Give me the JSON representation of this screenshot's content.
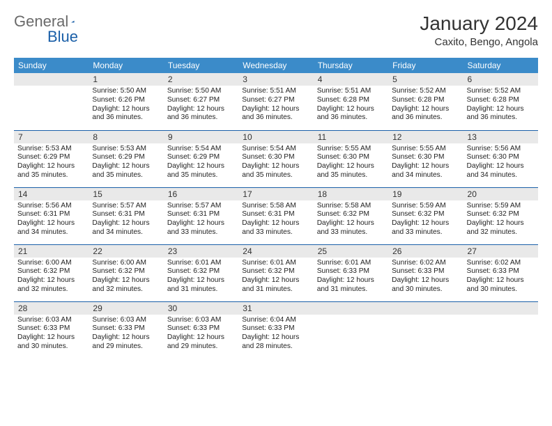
{
  "logo": {
    "general": "General",
    "blue": "Blue"
  },
  "title": "January 2024",
  "location": "Caxito, Bengo, Angola",
  "colors": {
    "header_bg": "#3b8bc9",
    "header_text": "#ffffff",
    "daynum_bg": "#e9e9e9",
    "row_border": "#1a5fa8",
    "logo_gray": "#6a6a6a",
    "logo_blue": "#1a5fa8"
  },
  "daynames": [
    "Sunday",
    "Monday",
    "Tuesday",
    "Wednesday",
    "Thursday",
    "Friday",
    "Saturday"
  ],
  "weeks": [
    [
      null,
      {
        "n": "1",
        "sr": "5:50 AM",
        "ss": "6:26 PM",
        "dl": "12 hours and 36 minutes."
      },
      {
        "n": "2",
        "sr": "5:50 AM",
        "ss": "6:27 PM",
        "dl": "12 hours and 36 minutes."
      },
      {
        "n": "3",
        "sr": "5:51 AM",
        "ss": "6:27 PM",
        "dl": "12 hours and 36 minutes."
      },
      {
        "n": "4",
        "sr": "5:51 AM",
        "ss": "6:28 PM",
        "dl": "12 hours and 36 minutes."
      },
      {
        "n": "5",
        "sr": "5:52 AM",
        "ss": "6:28 PM",
        "dl": "12 hours and 36 minutes."
      },
      {
        "n": "6",
        "sr": "5:52 AM",
        "ss": "6:28 PM",
        "dl": "12 hours and 36 minutes."
      }
    ],
    [
      {
        "n": "7",
        "sr": "5:53 AM",
        "ss": "6:29 PM",
        "dl": "12 hours and 35 minutes."
      },
      {
        "n": "8",
        "sr": "5:53 AM",
        "ss": "6:29 PM",
        "dl": "12 hours and 35 minutes."
      },
      {
        "n": "9",
        "sr": "5:54 AM",
        "ss": "6:29 PM",
        "dl": "12 hours and 35 minutes."
      },
      {
        "n": "10",
        "sr": "5:54 AM",
        "ss": "6:30 PM",
        "dl": "12 hours and 35 minutes."
      },
      {
        "n": "11",
        "sr": "5:55 AM",
        "ss": "6:30 PM",
        "dl": "12 hours and 35 minutes."
      },
      {
        "n": "12",
        "sr": "5:55 AM",
        "ss": "6:30 PM",
        "dl": "12 hours and 34 minutes."
      },
      {
        "n": "13",
        "sr": "5:56 AM",
        "ss": "6:30 PM",
        "dl": "12 hours and 34 minutes."
      }
    ],
    [
      {
        "n": "14",
        "sr": "5:56 AM",
        "ss": "6:31 PM",
        "dl": "12 hours and 34 minutes."
      },
      {
        "n": "15",
        "sr": "5:57 AM",
        "ss": "6:31 PM",
        "dl": "12 hours and 34 minutes."
      },
      {
        "n": "16",
        "sr": "5:57 AM",
        "ss": "6:31 PM",
        "dl": "12 hours and 33 minutes."
      },
      {
        "n": "17",
        "sr": "5:58 AM",
        "ss": "6:31 PM",
        "dl": "12 hours and 33 minutes."
      },
      {
        "n": "18",
        "sr": "5:58 AM",
        "ss": "6:32 PM",
        "dl": "12 hours and 33 minutes."
      },
      {
        "n": "19",
        "sr": "5:59 AM",
        "ss": "6:32 PM",
        "dl": "12 hours and 33 minutes."
      },
      {
        "n": "20",
        "sr": "5:59 AM",
        "ss": "6:32 PM",
        "dl": "12 hours and 32 minutes."
      }
    ],
    [
      {
        "n": "21",
        "sr": "6:00 AM",
        "ss": "6:32 PM",
        "dl": "12 hours and 32 minutes."
      },
      {
        "n": "22",
        "sr": "6:00 AM",
        "ss": "6:32 PM",
        "dl": "12 hours and 32 minutes."
      },
      {
        "n": "23",
        "sr": "6:01 AM",
        "ss": "6:32 PM",
        "dl": "12 hours and 31 minutes."
      },
      {
        "n": "24",
        "sr": "6:01 AM",
        "ss": "6:32 PM",
        "dl": "12 hours and 31 minutes."
      },
      {
        "n": "25",
        "sr": "6:01 AM",
        "ss": "6:33 PM",
        "dl": "12 hours and 31 minutes."
      },
      {
        "n": "26",
        "sr": "6:02 AM",
        "ss": "6:33 PM",
        "dl": "12 hours and 30 minutes."
      },
      {
        "n": "27",
        "sr": "6:02 AM",
        "ss": "6:33 PM",
        "dl": "12 hours and 30 minutes."
      }
    ],
    [
      {
        "n": "28",
        "sr": "6:03 AM",
        "ss": "6:33 PM",
        "dl": "12 hours and 30 minutes."
      },
      {
        "n": "29",
        "sr": "6:03 AM",
        "ss": "6:33 PM",
        "dl": "12 hours and 29 minutes."
      },
      {
        "n": "30",
        "sr": "6:03 AM",
        "ss": "6:33 PM",
        "dl": "12 hours and 29 minutes."
      },
      {
        "n": "31",
        "sr": "6:04 AM",
        "ss": "6:33 PM",
        "dl": "12 hours and 28 minutes."
      },
      null,
      null,
      null
    ]
  ],
  "labels": {
    "sunrise": "Sunrise:",
    "sunset": "Sunset:",
    "daylight": "Daylight:"
  }
}
